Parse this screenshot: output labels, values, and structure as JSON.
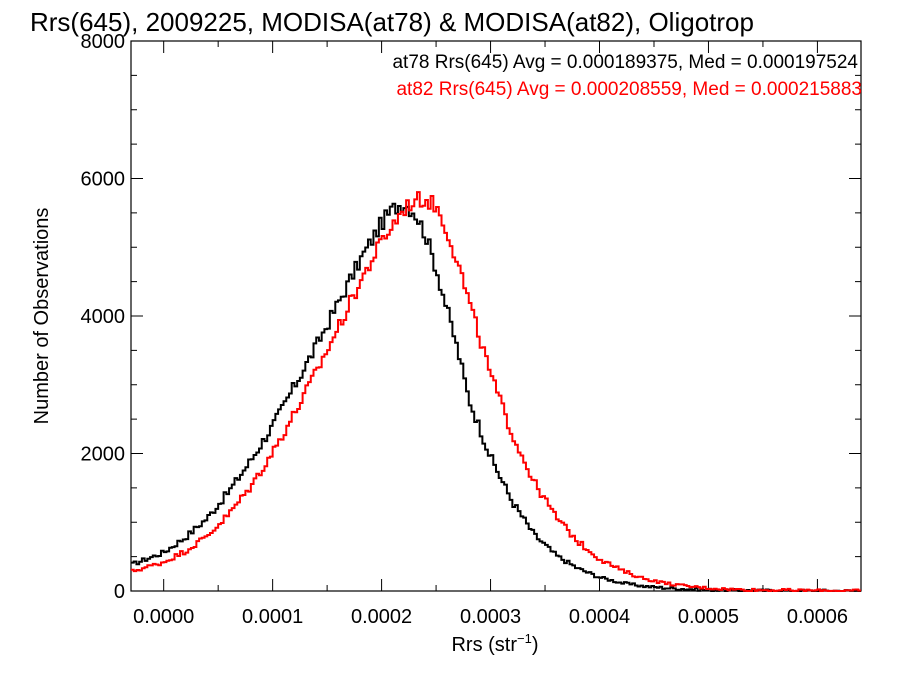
{
  "chart_data": {
    "type": "histogram-step",
    "title": "Rrs(645), 2009225, MODISA(at78) & MODISA(at82), Oligotrop",
    "xlabel_main": "Rrs (str",
    "xlabel_sup": "−1",
    "xlabel_close": ")",
    "ylabel": "Number of Observations",
    "xlim": [
      -3e-05,
      0.00064
    ],
    "ylim": [
      0,
      8000
    ],
    "x_ticks": [
      {
        "value": 0.0,
        "label": "0.0000"
      },
      {
        "value": 0.0001,
        "label": "0.0001"
      },
      {
        "value": 0.0002,
        "label": "0.0002"
      },
      {
        "value": 0.0003,
        "label": "0.0003"
      },
      {
        "value": 0.0004,
        "label": "0.0004"
      },
      {
        "value": 0.0005,
        "label": "0.0005"
      },
      {
        "value": 0.0006,
        "label": "0.0006"
      }
    ],
    "y_ticks": [
      {
        "value": 0,
        "label": "0"
      },
      {
        "value": 2000,
        "label": "2000"
      },
      {
        "value": 4000,
        "label": "4000"
      },
      {
        "value": 6000,
        "label": "6000"
      },
      {
        "value": 8000,
        "label": "8000"
      }
    ],
    "annotations": [
      {
        "text": "at78 Rrs(645) Avg = 0.000189375, Med = 0.000197524",
        "color": "#000000"
      },
      {
        "text": "at82 Rrs(645) Avg = 0.000208559, Med = 0.000215883",
        "color": "#ff0000"
      }
    ],
    "series": [
      {
        "color": "#000000",
        "x": [
          -3e-05,
          0.0,
          2e-05,
          4e-05,
          6e-05,
          8e-05,
          0.0001,
          0.00012,
          0.00014,
          0.00016,
          0.00018,
          0.0002,
          0.00021,
          0.00022,
          0.00023,
          0.00024,
          0.00025,
          0.00026,
          0.00027,
          0.00028,
          0.0003,
          0.00032,
          0.00034,
          0.00036,
          0.00038,
          0.0004,
          0.00042,
          0.00044,
          0.00046,
          0.00048,
          0.0005,
          0.00052,
          0.00055,
          0.0006,
          0.00064
        ],
        "y": [
          380,
          560,
          780,
          1060,
          1450,
          1900,
          2400,
          2980,
          3560,
          4180,
          4800,
          5350,
          5550,
          5650,
          5520,
          5200,
          4700,
          4100,
          3500,
          2800,
          1950,
          1300,
          820,
          520,
          330,
          200,
          120,
          70,
          45,
          28,
          18,
          10,
          6,
          3,
          2
        ]
      },
      {
        "color": "#ff0000",
        "x": [
          -3e-05,
          0.0,
          2e-05,
          4e-05,
          6e-05,
          8e-05,
          0.0001,
          0.00012,
          0.00014,
          0.00016,
          0.00018,
          0.0002,
          0.00022,
          0.00023,
          0.00024,
          0.00025,
          0.00026,
          0.00027,
          0.00028,
          0.0003,
          0.00032,
          0.00034,
          0.00036,
          0.00038,
          0.0004,
          0.00042,
          0.00044,
          0.00046,
          0.00048,
          0.0005,
          0.00052,
          0.00055,
          0.0006,
          0.00064
        ],
        "y": [
          280,
          420,
          580,
          800,
          1120,
          1520,
          2020,
          2580,
          3180,
          3820,
          4480,
          5080,
          5550,
          5680,
          5700,
          5600,
          5250,
          4780,
          4220,
          3150,
          2280,
          1580,
          1080,
          720,
          470,
          300,
          185,
          115,
          70,
          42,
          25,
          14,
          6,
          3
        ]
      }
    ]
  }
}
